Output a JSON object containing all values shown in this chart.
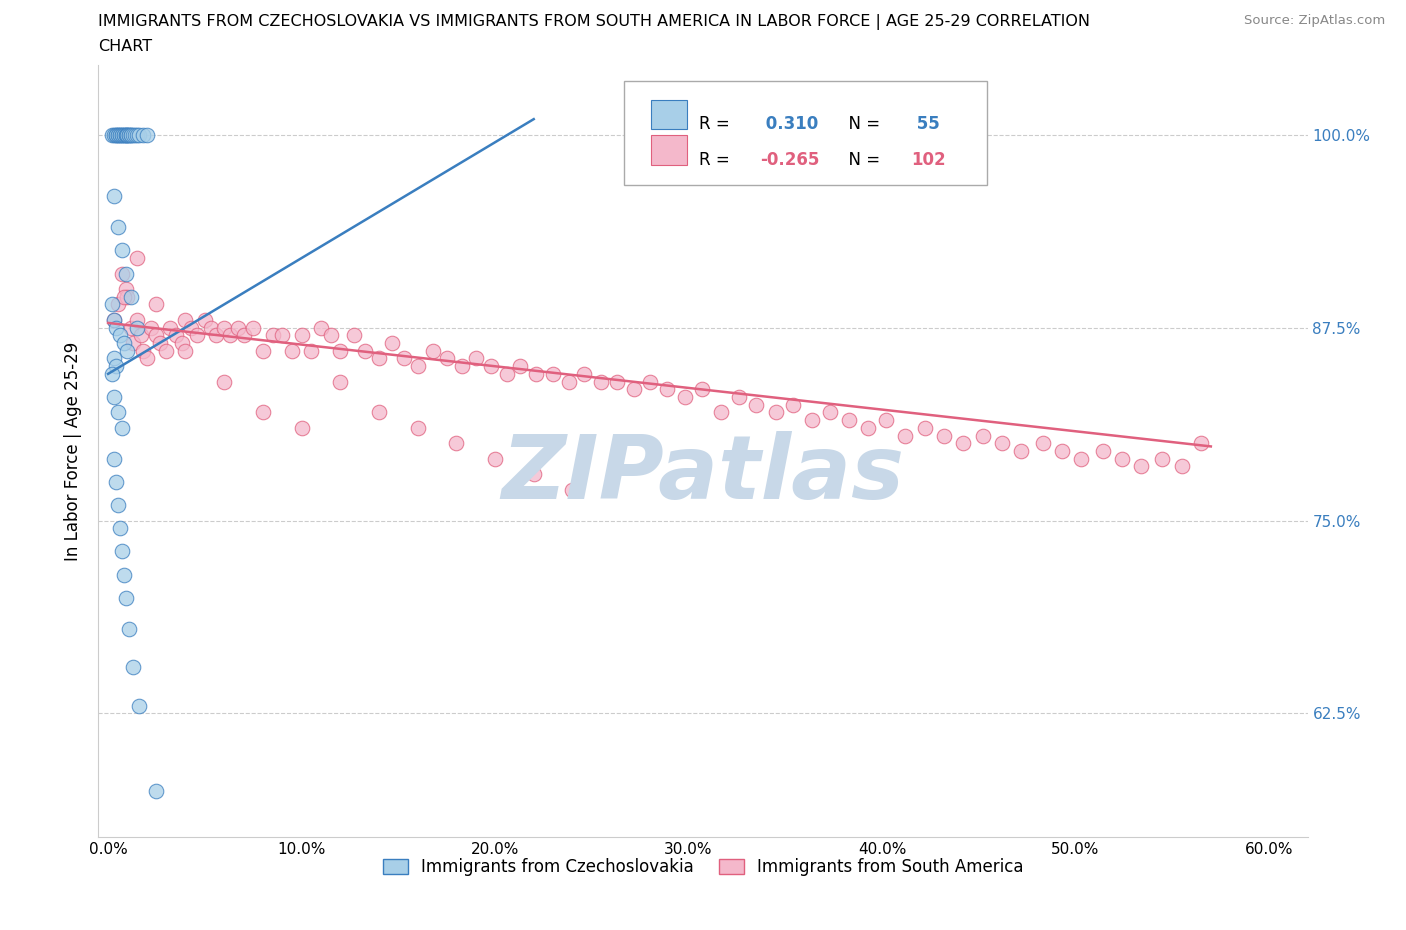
{
  "title_line1": "IMMIGRANTS FROM CZECHOSLOVAKIA VS IMMIGRANTS FROM SOUTH AMERICA IN LABOR FORCE | AGE 25-29 CORRELATION",
  "title_line2": "CHART",
  "source": "Source: ZipAtlas.com",
  "ylabel": "In Labor Force | Age 25-29",
  "legend_label_blue": "Immigrants from Czechoslovakia",
  "legend_label_pink": "Immigrants from South America",
  "R_blue": 0.31,
  "N_blue": 55,
  "R_pink": -0.265,
  "N_pink": 102,
  "blue_color": "#a8cfe8",
  "pink_color": "#f4b8cb",
  "blue_line_color": "#3a7ebf",
  "pink_line_color": "#e0607e",
  "watermark_color": "#c8d8e8",
  "xlim": [
    -0.005,
    0.62
  ],
  "ylim": [
    0.545,
    1.045
  ],
  "xtick_vals": [
    0.0,
    0.1,
    0.2,
    0.3,
    0.4,
    0.5,
    0.6
  ],
  "xtick_labels": [
    "0.0%",
    "10.0%",
    "20.0%",
    "30.0%",
    "40.0%",
    "50.0%",
    "60.0%"
  ],
  "ytick_vals": [
    0.625,
    0.75,
    0.875,
    1.0
  ],
  "ytick_labels": [
    "62.5%",
    "75.0%",
    "87.5%",
    "100.0%"
  ],
  "right_tick_color": "#3a7ebf",
  "blue_x": [
    0.002,
    0.003,
    0.004,
    0.004,
    0.005,
    0.005,
    0.006,
    0.006,
    0.007,
    0.007,
    0.008,
    0.008,
    0.009,
    0.009,
    0.01,
    0.01,
    0.011,
    0.011,
    0.012,
    0.012,
    0.013,
    0.014,
    0.015,
    0.016,
    0.018,
    0.02,
    0.003,
    0.005,
    0.007,
    0.009,
    0.012,
    0.002,
    0.003,
    0.004,
    0.006,
    0.008,
    0.01,
    0.003,
    0.004,
    0.002,
    0.003,
    0.005,
    0.007,
    0.015,
    0.003,
    0.004,
    0.005,
    0.006,
    0.007,
    0.008,
    0.009,
    0.011,
    0.013,
    0.016,
    0.025
  ],
  "blue_y": [
    1.0,
    1.0,
    1.0,
    1.0,
    1.0,
    1.0,
    1.0,
    1.0,
    1.0,
    1.0,
    1.0,
    1.0,
    1.0,
    1.0,
    1.0,
    1.0,
    1.0,
    1.0,
    1.0,
    1.0,
    1.0,
    1.0,
    1.0,
    1.0,
    1.0,
    1.0,
    0.96,
    0.94,
    0.925,
    0.91,
    0.895,
    0.89,
    0.88,
    0.875,
    0.87,
    0.865,
    0.86,
    0.855,
    0.85,
    0.845,
    0.83,
    0.82,
    0.81,
    0.875,
    0.79,
    0.775,
    0.76,
    0.745,
    0.73,
    0.715,
    0.7,
    0.68,
    0.655,
    0.63,
    0.575
  ],
  "blue_line_x": [
    0.0,
    0.22
  ],
  "blue_line_y": [
    0.845,
    1.01
  ],
  "pink_x": [
    0.003,
    0.005,
    0.007,
    0.009,
    0.01,
    0.012,
    0.013,
    0.015,
    0.017,
    0.018,
    0.02,
    0.022,
    0.025,
    0.027,
    0.03,
    0.032,
    0.035,
    0.038,
    0.04,
    0.043,
    0.046,
    0.05,
    0.053,
    0.056,
    0.06,
    0.063,
    0.067,
    0.07,
    0.075,
    0.08,
    0.085,
    0.09,
    0.095,
    0.1,
    0.105,
    0.11,
    0.115,
    0.12,
    0.127,
    0.133,
    0.14,
    0.147,
    0.153,
    0.16,
    0.168,
    0.175,
    0.183,
    0.19,
    0.198,
    0.206,
    0.213,
    0.221,
    0.23,
    0.238,
    0.246,
    0.255,
    0.263,
    0.272,
    0.28,
    0.289,
    0.298,
    0.307,
    0.317,
    0.326,
    0.335,
    0.345,
    0.354,
    0.364,
    0.373,
    0.383,
    0.393,
    0.402,
    0.412,
    0.422,
    0.432,
    0.442,
    0.452,
    0.462,
    0.472,
    0.483,
    0.493,
    0.503,
    0.514,
    0.524,
    0.534,
    0.545,
    0.555,
    0.565,
    0.008,
    0.015,
    0.025,
    0.04,
    0.06,
    0.08,
    0.1,
    0.12,
    0.14,
    0.16,
    0.18,
    0.2,
    0.22,
    0.24
  ],
  "pink_y": [
    0.88,
    0.89,
    0.91,
    0.9,
    0.895,
    0.875,
    0.865,
    0.88,
    0.87,
    0.86,
    0.855,
    0.875,
    0.87,
    0.865,
    0.86,
    0.875,
    0.87,
    0.865,
    0.88,
    0.875,
    0.87,
    0.88,
    0.875,
    0.87,
    0.875,
    0.87,
    0.875,
    0.87,
    0.875,
    0.86,
    0.87,
    0.87,
    0.86,
    0.87,
    0.86,
    0.875,
    0.87,
    0.86,
    0.87,
    0.86,
    0.855,
    0.865,
    0.855,
    0.85,
    0.86,
    0.855,
    0.85,
    0.855,
    0.85,
    0.845,
    0.85,
    0.845,
    0.845,
    0.84,
    0.845,
    0.84,
    0.84,
    0.835,
    0.84,
    0.835,
    0.83,
    0.835,
    0.82,
    0.83,
    0.825,
    0.82,
    0.825,
    0.815,
    0.82,
    0.815,
    0.81,
    0.815,
    0.805,
    0.81,
    0.805,
    0.8,
    0.805,
    0.8,
    0.795,
    0.8,
    0.795,
    0.79,
    0.795,
    0.79,
    0.785,
    0.79,
    0.785,
    0.8,
    0.895,
    0.92,
    0.89,
    0.86,
    0.84,
    0.82,
    0.81,
    0.84,
    0.82,
    0.81,
    0.8,
    0.79,
    0.78,
    0.77
  ],
  "pink_line_x": [
    0.0,
    0.57
  ],
  "pink_line_y": [
    0.878,
    0.798
  ]
}
